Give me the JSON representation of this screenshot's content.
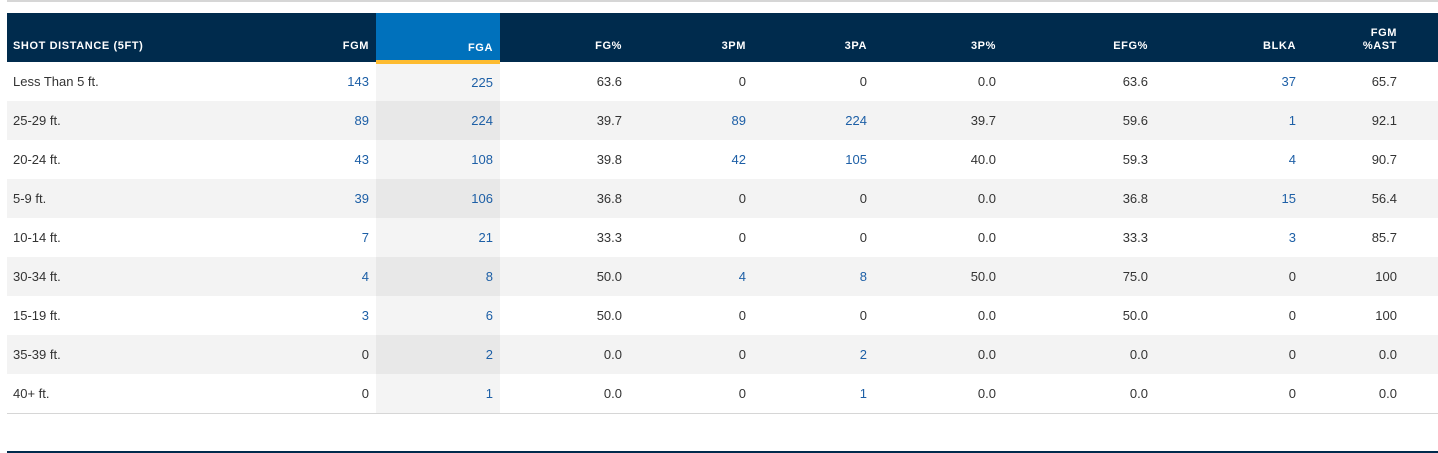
{
  "table": {
    "headers": [
      [
        "SHOT DISTANCE (5FT)"
      ],
      [
        "FGM"
      ],
      [
        "FGA"
      ],
      [
        "FG%"
      ],
      [
        "3PM"
      ],
      [
        "3PA"
      ],
      [
        "3P%"
      ],
      [
        "EFG%"
      ],
      [
        "BLKA"
      ],
      [
        "FGM",
        "%AST"
      ]
    ],
    "sorted_column": "FGA",
    "colors": {
      "header_bg": "#002b4d",
      "sorted_header_bg": "#0071bc",
      "sorted_underline": "#fdbb30",
      "link_text": "#1d5fa6",
      "stripe": "#f3f3f3"
    },
    "rows": [
      {
        "distance": "Less Than 5 ft.",
        "fgm": "143",
        "fga": "225",
        "fg_pct": "63.6",
        "tpm": "0",
        "tpa": "0",
        "tp_pct": "0.0",
        "efg_pct": "63.6",
        "blka": "37",
        "fgm_ast": "65.7"
      },
      {
        "distance": "25-29 ft.",
        "fgm": "89",
        "fga": "224",
        "fg_pct": "39.7",
        "tpm": "89",
        "tpa": "224",
        "tp_pct": "39.7",
        "efg_pct": "59.6",
        "blka": "1",
        "fgm_ast": "92.1"
      },
      {
        "distance": "20-24 ft.",
        "fgm": "43",
        "fga": "108",
        "fg_pct": "39.8",
        "tpm": "42",
        "tpa": "105",
        "tp_pct": "40.0",
        "efg_pct": "59.3",
        "blka": "4",
        "fgm_ast": "90.7"
      },
      {
        "distance": "5-9 ft.",
        "fgm": "39",
        "fga": "106",
        "fg_pct": "36.8",
        "tpm": "0",
        "tpa": "0",
        "tp_pct": "0.0",
        "efg_pct": "36.8",
        "blka": "15",
        "fgm_ast": "56.4"
      },
      {
        "distance": "10-14 ft.",
        "fgm": "7",
        "fga": "21",
        "fg_pct": "33.3",
        "tpm": "0",
        "tpa": "0",
        "tp_pct": "0.0",
        "efg_pct": "33.3",
        "blka": "3",
        "fgm_ast": "85.7"
      },
      {
        "distance": "30-34 ft.",
        "fgm": "4",
        "fga": "8",
        "fg_pct": "50.0",
        "tpm": "4",
        "tpa": "8",
        "tp_pct": "50.0",
        "efg_pct": "75.0",
        "blka": "0",
        "fgm_ast": "100"
      },
      {
        "distance": "15-19 ft.",
        "fgm": "3",
        "fga": "6",
        "fg_pct": "50.0",
        "tpm": "0",
        "tpa": "0",
        "tp_pct": "0.0",
        "efg_pct": "50.0",
        "blka": "0",
        "fgm_ast": "100"
      },
      {
        "distance": "35-39 ft.",
        "fgm": "0",
        "fga": "2",
        "fg_pct": "0.0",
        "tpm": "0",
        "tpa": "2",
        "tp_pct": "0.0",
        "efg_pct": "0.0",
        "blka": "0",
        "fgm_ast": "0.0"
      },
      {
        "distance": "40+ ft.",
        "fgm": "0",
        "fga": "1",
        "fg_pct": "0.0",
        "tpm": "0",
        "tpa": "1",
        "tp_pct": "0.0",
        "efg_pct": "0.0",
        "blka": "0",
        "fgm_ast": "0.0"
      }
    ]
  }
}
